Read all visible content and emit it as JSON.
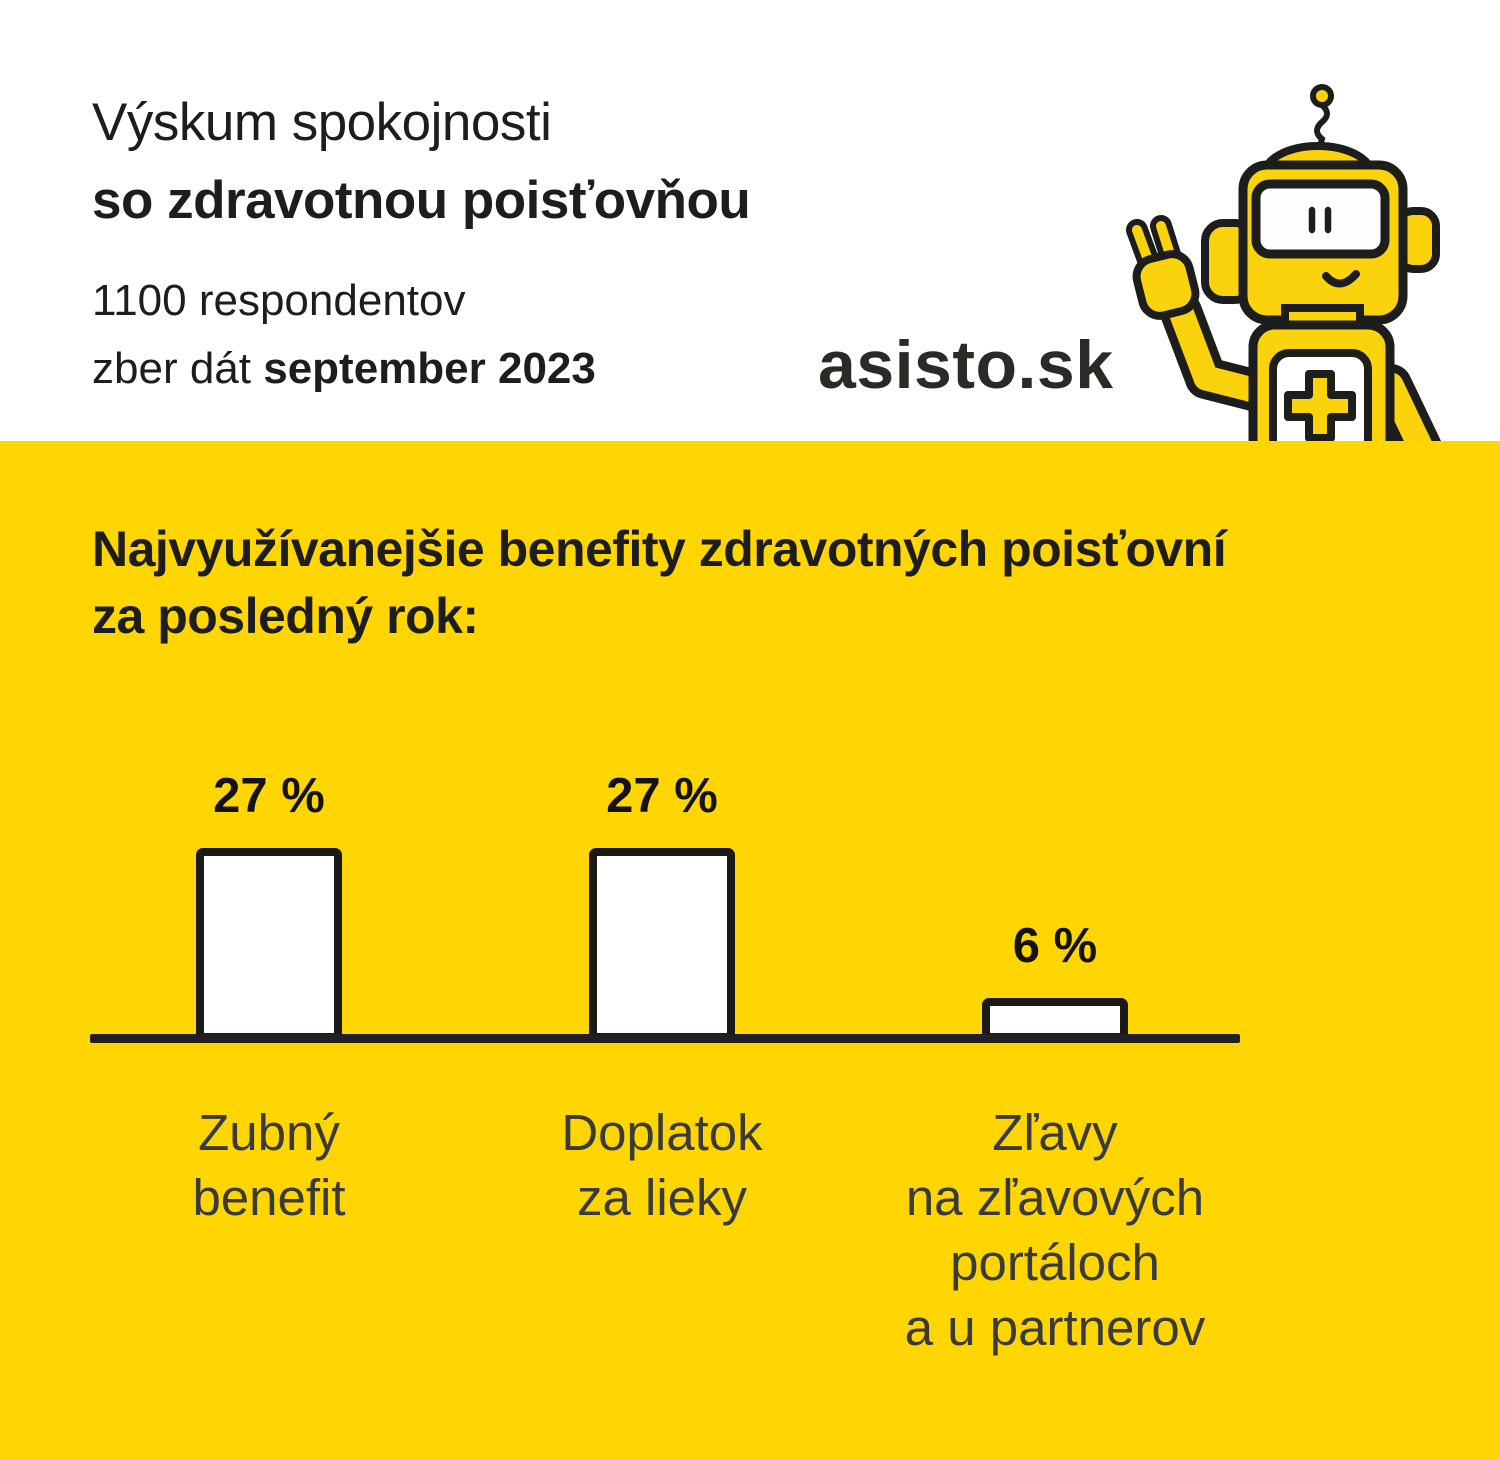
{
  "colors": {
    "background_top": "#FFFFFF",
    "background_bottom": "#FFD502",
    "text_dark": "#1D1D1B",
    "category_label_gray": "#3A3A38",
    "robot_yellow": "#FBD30C",
    "outline_black": "#1D1D1B",
    "bar_fill": "#FFFFFF",
    "bar_border": "#1A1917",
    "axis_color": "#231F20"
  },
  "header": {
    "title_line1": "Výskum spokojnosti",
    "title_line2": "so zdravotnou poisťovňou",
    "respondents": "1100 respondentov",
    "collection_prefix": "zber dát ",
    "collection_period": "september 2023",
    "brand": "asisto.sk"
  },
  "mascot": {
    "icon": "robot-mascot-icon",
    "description_elements": [
      "antenna",
      "screen-face",
      "smile",
      "raised-pointing-hand",
      "medical-cross-chest-panel"
    ]
  },
  "section": {
    "heading_line1": "Najvyužívanejšie benefity zdravotných poisťovní",
    "heading_line2": "za posledný rok:"
  },
  "chart_data": {
    "type": "bar",
    "title": "Najvyužívanejšie benefity zdravotných poisťovní za posledný rok",
    "categories": [
      "Zubný benefit",
      "Doplatok za lieky",
      "Zľavy na zľavových portáloch a u partnerov"
    ],
    "category_lines": [
      [
        "Zubný",
        "benefit"
      ],
      [
        "Doplatok",
        "za lieky"
      ],
      [
        "Zľavy",
        "na zľavových",
        "portáloch",
        "a u partnerov"
      ]
    ],
    "values": [
      27,
      27,
      6
    ],
    "value_labels": [
      "27 %",
      "27 %",
      "6 %"
    ],
    "unit": "%",
    "xlabel": "",
    "ylabel": "",
    "ylim": [
      0,
      27
    ],
    "grid": false,
    "legend": false,
    "bar_fill": "#FFFFFF",
    "bar_border": "#1A1917",
    "axis_color": "#231F20"
  }
}
